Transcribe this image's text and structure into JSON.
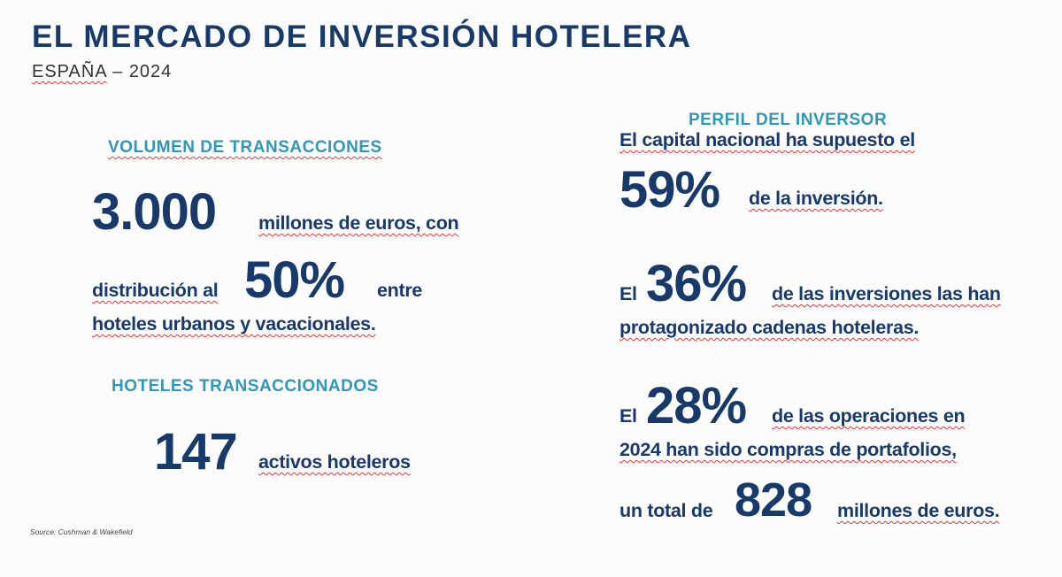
{
  "header": {
    "title": "EL MERCADO DE INVERSIÓN HOTELERA",
    "subtitle_country": "ESPAÑA",
    "subtitle_sep": " – ",
    "subtitle_year": "2024"
  },
  "left": {
    "volume_heading": "VOLUMEN DE TRANSACCIONES",
    "volume_value": "3.000",
    "volume_text": "millones de euros, con",
    "distribution_pre": "distribución al",
    "distribution_value": "50%",
    "distribution_post": "entre",
    "distribution_line2": "hoteles urbanos y vacacionales.",
    "hotels_heading": "HOTELES TRANSACCIONADOS",
    "hotels_value": "147",
    "hotels_text": "activos hoteleros"
  },
  "right": {
    "profile_heading": "PERFIL DEL INVERSOR",
    "stat1_line1": "El capital nacional ha supuesto el",
    "stat1_value": "59%",
    "stat1_text": "de la inversión.",
    "stat2_pre": "El",
    "stat2_value": "36%",
    "stat2_text": "de las inversiones las han",
    "stat2_line2": "protagonizado cadenas hoteleras.",
    "stat3_pre": "El",
    "stat3_value": "28%",
    "stat3_text": "de las operaciones en",
    "stat3_line2": "2024 han sido compras de portafolios,",
    "stat3_line3_pre": "un total de",
    "stat3_line3_value": "828",
    "stat3_line3_post": "millones de euros."
  },
  "footer": {
    "source": "Source: Cushman & Wakefield"
  }
}
